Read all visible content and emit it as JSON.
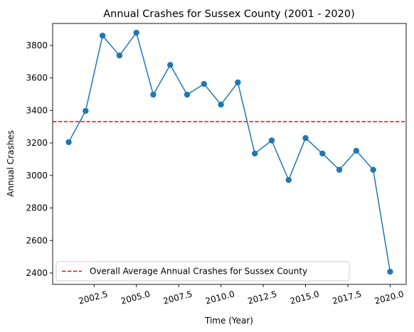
{
  "chart_data": {
    "type": "line",
    "title": "Annual Crashes for Sussex County (2001 - 2020)",
    "xlabel": "Time (Year)",
    "ylabel": "Annual Crashes",
    "xlim": [
      2000.05,
      2020.95
    ],
    "ylim": [
      2330,
      3935
    ],
    "x_ticks": [
      2002.5,
      2005.0,
      2007.5,
      2010.0,
      2012.5,
      2015.0,
      2017.5,
      2020.0
    ],
    "x_tick_labels": [
      "2002.5",
      "2005.0",
      "2007.5",
      "2010.0",
      "2012.5",
      "2015.0",
      "2017.5",
      "2020.0"
    ],
    "x_tick_rotation_deg": 15,
    "y_ticks": [
      2400,
      2600,
      2800,
      3000,
      3200,
      3400,
      3600,
      3800
    ],
    "y_tick_labels": [
      "2400",
      "2600",
      "2800",
      "3000",
      "3200",
      "3400",
      "3600",
      "3800"
    ],
    "grid": false,
    "series": [
      {
        "color": "#1f77b4",
        "marker": "circle",
        "x": [
          2001,
          2002,
          2003,
          2004,
          2005,
          2006,
          2007,
          2008,
          2009,
          2010,
          2011,
          2012,
          2013,
          2014,
          2015,
          2016,
          2017,
          2018,
          2019,
          2020
        ],
        "y": [
          3205,
          3397,
          3860,
          3738,
          3878,
          3497,
          3680,
          3497,
          3563,
          3436,
          3572,
          3135,
          3215,
          2972,
          3230,
          3135,
          3035,
          3152,
          3035,
          2408
        ]
      }
    ],
    "reference_lines": [
      {
        "name": "Overall Average Annual Crashes for Sussex County",
        "orientation": "horizontal",
        "y": 3331,
        "color": "#ff0000",
        "style": "dashed"
      }
    ],
    "legend": {
      "placement": "lower-left"
    }
  }
}
